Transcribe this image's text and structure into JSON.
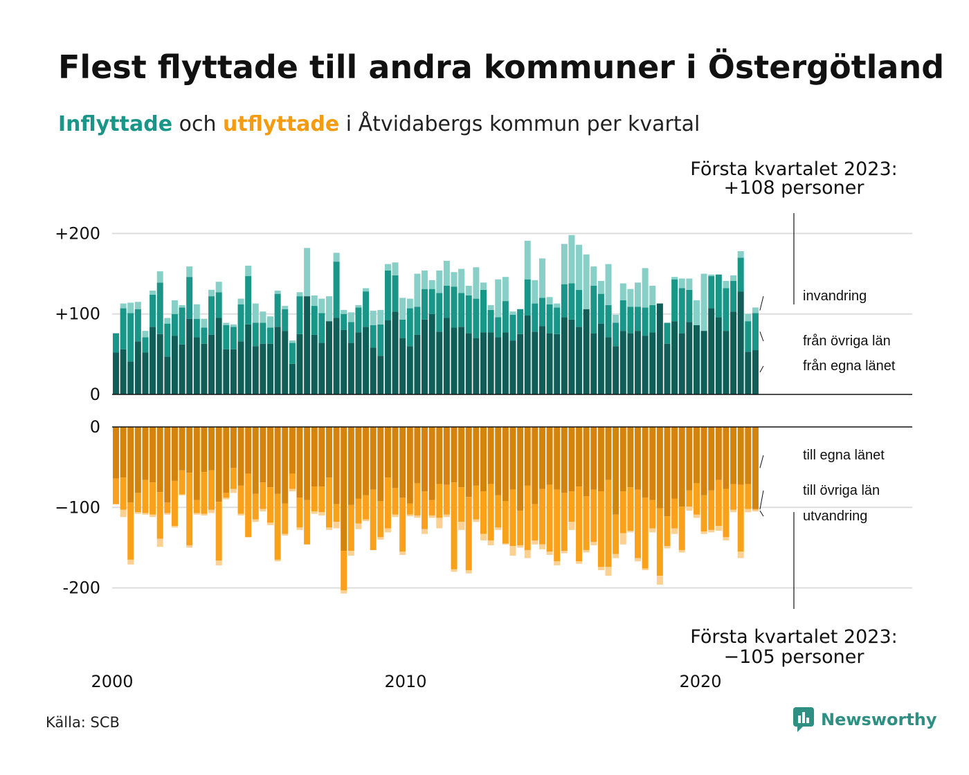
{
  "header": {
    "title": "Flest flyttade till andra kommuner i Östergötland",
    "subtitle_in": "Inflyttade",
    "subtitle_mid": " och ",
    "subtitle_out": "utflyttade",
    "subtitle_rest": " i Åtvidabergs kommun per kvartal"
  },
  "annotations": {
    "top_line1": "Första kvartalet 2023:",
    "top_line2": "+108 personer",
    "bottom_line1": "Första kvartalet 2023:",
    "bottom_line2": "−105 personer"
  },
  "footer": {
    "source": "Källa: SCB",
    "brand": "Newsworthy"
  },
  "colors": {
    "in_own": "#115e58",
    "in_other": "#1a9688",
    "in_immig": "#88d0c7",
    "out_own": "#d4830d",
    "out_other": "#f9a11b",
    "out_emig": "#fbd193",
    "grid": "#dddddd",
    "axis": "#111111"
  },
  "chart_data": {
    "type": "bar",
    "stacked": true,
    "frequency": "quarterly",
    "x_start": "2000 Q1",
    "x_end": "2023 Q1",
    "x_ticks": [
      "2000",
      "2010",
      "2020"
    ],
    "inflow": {
      "ylim": [
        0,
        230
      ],
      "y_ticks": [
        "0",
        "+100",
        "+200"
      ],
      "series": [
        {
          "name": "från egna länet",
          "values": [
            52,
            56,
            41,
            66,
            52,
            84,
            75,
            47,
            73,
            62,
            94,
            71,
            63,
            74,
            95,
            56,
            56,
            66,
            87,
            60,
            63,
            63,
            84,
            79,
            38,
            75,
            122,
            74,
            64,
            91,
            95,
            80,
            64,
            77,
            84,
            58,
            48,
            92,
            103,
            70,
            60,
            74,
            93,
            100,
            78,
            95,
            83,
            84,
            76,
            70,
            77,
            77,
            71,
            77,
            67,
            75,
            98,
            78,
            85,
            76,
            75,
            96,
            93,
            84,
            106,
            76,
            88,
            71,
            60,
            79,
            76,
            79,
            73,
            77,
            113,
            63,
            91,
            76,
            90,
            86,
            79,
            107,
            96,
            79,
            103,
            128,
            53,
            55
          ]
        },
        {
          "name": "från övriga län",
          "values": [
            24,
            51,
            60,
            40,
            19,
            40,
            64,
            41,
            27,
            46,
            52,
            23,
            20,
            48,
            32,
            30,
            28,
            46,
            60,
            29,
            26,
            20,
            41,
            27,
            26,
            47,
            0,
            36,
            37,
            0,
            70,
            20,
            26,
            31,
            44,
            28,
            39,
            62,
            45,
            23,
            47,
            35,
            38,
            31,
            48,
            40,
            51,
            42,
            47,
            49,
            53,
            28,
            25,
            39,
            32,
            31,
            45,
            35,
            35,
            36,
            33,
            41,
            45,
            46,
            0,
            59,
            37,
            40,
            29,
            38,
            33,
            30,
            35,
            34,
            0,
            26,
            52,
            56,
            40,
            0,
            0,
            40,
            53,
            53,
            38,
            42,
            38,
            46
          ]
        },
        {
          "name": "invandring",
          "values": [
            0,
            6,
            13,
            9,
            8,
            5,
            14,
            7,
            17,
            3,
            13,
            18,
            11,
            8,
            13,
            3,
            3,
            7,
            13,
            24,
            14,
            14,
            4,
            4,
            3,
            5,
            60,
            13,
            18,
            31,
            11,
            5,
            12,
            3,
            4,
            18,
            18,
            8,
            16,
            27,
            12,
            41,
            23,
            11,
            28,
            31,
            18,
            30,
            12,
            39,
            9,
            6,
            47,
            30,
            4,
            0,
            48,
            29,
            49,
            9,
            5,
            50,
            60,
            56,
            68,
            24,
            16,
            51,
            10,
            21,
            22,
            30,
            49,
            24,
            0,
            0,
            3,
            12,
            14,
            31,
            71,
            2,
            0,
            9,
            7,
            8,
            9,
            7
          ]
        }
      ]
    },
    "outflow": {
      "ylim": [
        -230,
        0
      ],
      "y_ticks": [
        "0",
        "−100",
        "-200"
      ],
      "series": [
        {
          "name": "till egna länet",
          "values": [
            -64,
            -63,
            -94,
            -82,
            -66,
            -69,
            -81,
            -94,
            -67,
            -54,
            -57,
            -91,
            -56,
            -54,
            -93,
            -82,
            -51,
            -73,
            -58,
            -83,
            -69,
            -75,
            -83,
            -95,
            -58,
            -88,
            -91,
            -74,
            -74,
            -63,
            -96,
            -154,
            -97,
            -89,
            -85,
            -78,
            -92,
            -63,
            -76,
            -88,
            -95,
            -70,
            -80,
            -91,
            -71,
            -72,
            -69,
            -75,
            -87,
            -73,
            -80,
            -71,
            -85,
            -92,
            -78,
            -104,
            -73,
            -96,
            -77,
            -72,
            -78,
            -82,
            -80,
            -74,
            -86,
            -78,
            -80,
            -66,
            -109,
            -80,
            -75,
            -78,
            -88,
            -91,
            -101,
            -111,
            -89,
            -99,
            -79,
            -70,
            -85,
            -79,
            -66,
            -77,
            -71,
            -72,
            -71,
            -102
          ]
        },
        {
          "name": "till övriga län",
          "values": [
            -32,
            -40,
            -71,
            -24,
            -41,
            -40,
            -58,
            -13,
            -56,
            -30,
            -90,
            -16,
            -52,
            -49,
            -73,
            -6,
            -26,
            -35,
            -79,
            -32,
            -33,
            -44,
            -82,
            -38,
            -19,
            -37,
            -55,
            -31,
            -32,
            -62,
            -22,
            -49,
            -57,
            -31,
            -30,
            -75,
            -45,
            -63,
            -33,
            -67,
            -14,
            -40,
            -47,
            -19,
            -42,
            -37,
            -108,
            -43,
            -91,
            -42,
            -53,
            -70,
            -40,
            -53,
            -70,
            -43,
            -80,
            -45,
            -69,
            -83,
            -89,
            -72,
            -38,
            -93,
            -67,
            -65,
            -94,
            -108,
            -49,
            -52,
            -54,
            -85,
            -88,
            -35,
            -84,
            -37,
            -37,
            -54,
            -20,
            -39,
            -45,
            -49,
            -57,
            -60,
            -32,
            -83,
            -31,
            -1
          ]
        },
        {
          "name": "utvandring",
          "values": [
            0,
            -9,
            -6,
            -2,
            -2,
            -3,
            -10,
            -2,
            -2,
            -1,
            -3,
            -2,
            -2,
            -4,
            -6,
            -2,
            -5,
            -2,
            0,
            -3,
            -3,
            -3,
            -2,
            -2,
            -3,
            -3,
            0,
            -3,
            -4,
            -3,
            -8,
            -4,
            -6,
            -7,
            -2,
            0,
            -3,
            -5,
            -3,
            -4,
            -2,
            -3,
            -6,
            -3,
            -13,
            -3,
            -3,
            -10,
            -4,
            -3,
            -8,
            -6,
            -3,
            -1,
            -12,
            -3,
            -10,
            -5,
            -6,
            -4,
            -5,
            -3,
            -10,
            -3,
            -3,
            -4,
            -4,
            -11,
            -5,
            -14,
            -2,
            -4,
            -2,
            -5,
            -11,
            -3,
            -7,
            -3,
            -5,
            -4,
            -3,
            -3,
            -6,
            -4,
            -3,
            -8,
            -4,
            -2
          ]
        }
      ]
    },
    "legend": "right, inline labels"
  }
}
